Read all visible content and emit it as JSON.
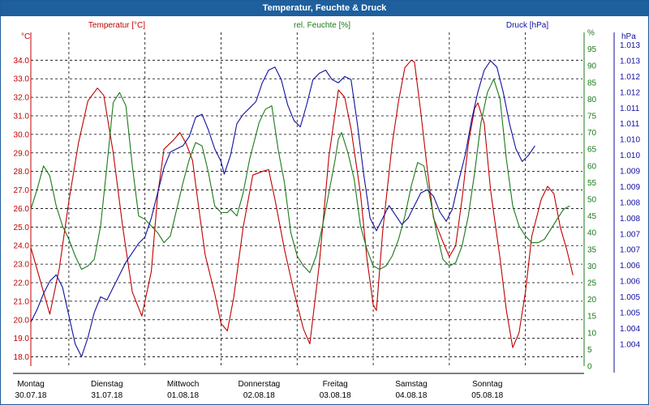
{
  "window": {
    "title": "Temperatur, Feuchte & Druck"
  },
  "chart_data": {
    "type": "line",
    "title": "Temperatur, Feuchte & Druck",
    "colors": {
      "temperature": "#c00000",
      "humidity": "#1a7a1a",
      "pressure": "#1010a0",
      "grid": "#000000"
    },
    "legend": {
      "temperature": "Temperatur [°C]",
      "humidity": "rel. Feuchte [%]",
      "pressure": "Druck [hPa]"
    },
    "axes": {
      "left": {
        "unit": "°C",
        "min": 17.5,
        "max": 35.5,
        "ticks": [
          "18.0",
          "19.0",
          "20.0",
          "21.0",
          "22.0",
          "23.0",
          "24.0",
          "25.0",
          "26.0",
          "27.0",
          "28.0",
          "29.0",
          "30.0",
          "31.0",
          "32.0",
          "33.0",
          "34.0"
        ]
      },
      "humidity": {
        "unit": "%",
        "min": 0,
        "max": 100,
        "ticks": [
          "0",
          "5",
          "10",
          "15",
          "20",
          "25",
          "30",
          "35",
          "40",
          "45",
          "50",
          "55",
          "60",
          "65",
          "70",
          "75",
          "80",
          "85",
          "90",
          "95",
          "%"
        ]
      },
      "right": {
        "unit": "hPa",
        "min": 1.0033,
        "max": 1.0139,
        "ticks": [
          "1.004",
          "1.004",
          "1.005",
          "1.005",
          "1.006",
          "1.006",
          "1.007",
          "1.007",
          "1.008",
          "1.008",
          "1.009",
          "1.009",
          "1.010",
          "1.010",
          "1.011",
          "1.011",
          "1.012",
          "1.012",
          "1.013",
          "1.013"
        ]
      }
    },
    "x": {
      "days": [
        "Montag",
        "Dienstag",
        "Mittwoch",
        "Donnerstag",
        "Freitag",
        "Samstag",
        "Sonntag"
      ],
      "dates": [
        "30.07.18",
        "31.07.18",
        "01.08.18",
        "02.08.18",
        "03.08.18",
        "04.08.18",
        "05.08.18"
      ],
      "range_hours": [
        0,
        174
      ]
    },
    "series": [
      {
        "name": "Temperatur [°C]",
        "axis": "left",
        "points": [
          [
            0,
            23.9
          ],
          [
            3,
            22.1
          ],
          [
            6,
            20.3
          ],
          [
            9,
            22.8
          ],
          [
            12,
            26.4
          ],
          [
            15,
            29.5
          ],
          [
            18,
            31.8
          ],
          [
            21,
            32.5
          ],
          [
            23,
            32.1
          ],
          [
            26,
            29.0
          ],
          [
            29,
            25.0
          ],
          [
            32,
            21.5
          ],
          [
            35,
            20.2
          ],
          [
            38,
            22.6
          ],
          [
            40,
            26.7
          ],
          [
            42,
            29.2
          ],
          [
            45,
            29.7
          ],
          [
            47,
            30.1
          ],
          [
            49,
            29.5
          ],
          [
            51,
            28.6
          ],
          [
            53,
            26.0
          ],
          [
            55,
            23.5
          ],
          [
            58,
            21.4
          ],
          [
            60,
            19.8
          ],
          [
            62,
            19.4
          ],
          [
            64,
            21.2
          ],
          [
            67,
            25.0
          ],
          [
            70,
            27.8
          ],
          [
            73,
            28.0
          ],
          [
            75,
            28.1
          ],
          [
            77,
            26.5
          ],
          [
            80,
            23.8
          ],
          [
            83,
            21.5
          ],
          [
            86,
            19.5
          ],
          [
            88,
            18.7
          ],
          [
            91,
            23.0
          ],
          [
            94,
            28.8
          ],
          [
            97,
            32.4
          ],
          [
            99,
            32.0
          ],
          [
            101,
            30.3
          ],
          [
            104,
            26.8
          ],
          [
            106,
            23.3
          ],
          [
            108,
            20.8
          ],
          [
            109,
            20.5
          ],
          [
            111,
            24.8
          ],
          [
            114,
            29.5
          ],
          [
            116,
            31.8
          ],
          [
            118,
            33.6
          ],
          [
            120,
            34.0
          ],
          [
            121,
            33.9
          ],
          [
            123,
            31.2
          ],
          [
            125,
            28.2
          ],
          [
            127,
            25.5
          ],
          [
            130,
            24.2
          ],
          [
            132,
            23.4
          ],
          [
            134,
            24.0
          ],
          [
            136,
            26.5
          ],
          [
            138,
            29.5
          ],
          [
            140,
            31.4
          ],
          [
            141,
            31.7
          ],
          [
            143,
            30.6
          ],
          [
            145,
            27.0
          ],
          [
            148,
            23.3
          ],
          [
            150,
            20.5
          ],
          [
            152,
            18.5
          ],
          [
            154,
            19.3
          ],
          [
            156,
            21.5
          ],
          [
            158,
            24.5
          ],
          [
            161,
            26.5
          ],
          [
            163,
            27.2
          ],
          [
            165,
            26.8
          ],
          [
            167,
            25.0
          ],
          [
            169,
            23.8
          ],
          [
            171,
            22.4
          ]
        ]
      },
      {
        "name": "rel. Feuchte [%]",
        "axis": "humidity",
        "points": [
          [
            0,
            47
          ],
          [
            2,
            53
          ],
          [
            4,
            60
          ],
          [
            6,
            57
          ],
          [
            8,
            48
          ],
          [
            10,
            42
          ],
          [
            12,
            38
          ],
          [
            14,
            33
          ],
          [
            16,
            29
          ],
          [
            18,
            30
          ],
          [
            20,
            32
          ],
          [
            22,
            42
          ],
          [
            24,
            60
          ],
          [
            26,
            79
          ],
          [
            28,
            82
          ],
          [
            30,
            78
          ],
          [
            32,
            60
          ],
          [
            34,
            45
          ],
          [
            36,
            44
          ],
          [
            38,
            42
          ],
          [
            40,
            40
          ],
          [
            42,
            37
          ],
          [
            44,
            39
          ],
          [
            46,
            47
          ],
          [
            48,
            55
          ],
          [
            50,
            62
          ],
          [
            52,
            67
          ],
          [
            54,
            66
          ],
          [
            56,
            58
          ],
          [
            58,
            48
          ],
          [
            60,
            46
          ],
          [
            62,
            46
          ],
          [
            63,
            47
          ],
          [
            65,
            45
          ],
          [
            67,
            52
          ],
          [
            69,
            62
          ],
          [
            72,
            73
          ],
          [
            74,
            77
          ],
          [
            76,
            78
          ],
          [
            78,
            65
          ],
          [
            80,
            55
          ],
          [
            82,
            40
          ],
          [
            84,
            33
          ],
          [
            86,
            30
          ],
          [
            88,
            28
          ],
          [
            90,
            33
          ],
          [
            92,
            42
          ],
          [
            94,
            52
          ],
          [
            96,
            62
          ],
          [
            97,
            68
          ],
          [
            98,
            70
          ],
          [
            100,
            64
          ],
          [
            102,
            56
          ],
          [
            104,
            42
          ],
          [
            106,
            35
          ],
          [
            108,
            30
          ],
          [
            110,
            29
          ],
          [
            112,
            30
          ],
          [
            114,
            33
          ],
          [
            116,
            38
          ],
          [
            118,
            45
          ],
          [
            120,
            54
          ],
          [
            122,
            61
          ],
          [
            124,
            60
          ],
          [
            126,
            50
          ],
          [
            128,
            40
          ],
          [
            130,
            32
          ],
          [
            132,
            30
          ],
          [
            134,
            31
          ],
          [
            136,
            36
          ],
          [
            138,
            45
          ],
          [
            140,
            58
          ],
          [
            142,
            73
          ],
          [
            144,
            82
          ],
          [
            146,
            86
          ],
          [
            148,
            80
          ],
          [
            150,
            62
          ],
          [
            152,
            48
          ],
          [
            154,
            42
          ],
          [
            156,
            39
          ],
          [
            158,
            37
          ],
          [
            160,
            37
          ],
          [
            162,
            38
          ],
          [
            164,
            41
          ],
          [
            166,
            44
          ],
          [
            168,
            47
          ],
          [
            170,
            48
          ]
        ]
      },
      {
        "name": "Druck [hPa]",
        "axis": "right",
        "points": [
          [
            0,
            1.0047
          ],
          [
            2,
            1.0051
          ],
          [
            4,
            1.0056
          ],
          [
            6,
            1.006
          ],
          [
            8,
            1.0062
          ],
          [
            10,
            1.0058
          ],
          [
            12,
            1.0049
          ],
          [
            14,
            1.004
          ],
          [
            16,
            1.0036
          ],
          [
            18,
            1.0042
          ],
          [
            20,
            1.005
          ],
          [
            22,
            1.0055
          ],
          [
            24,
            1.0054
          ],
          [
            26,
            1.0058
          ],
          [
            28,
            1.0062
          ],
          [
            30,
            1.0066
          ],
          [
            32,
            1.0069
          ],
          [
            34,
            1.0072
          ],
          [
            36,
            1.0074
          ],
          [
            38,
            1.008
          ],
          [
            40,
            1.0088
          ],
          [
            42,
            1.0096
          ],
          [
            44,
            1.0101
          ],
          [
            46,
            1.0102
          ],
          [
            48,
            1.0103
          ],
          [
            50,
            1.0106
          ],
          [
            52,
            1.0112
          ],
          [
            54,
            1.0113
          ],
          [
            56,
            1.0108
          ],
          [
            58,
            1.0102
          ],
          [
            60,
            1.0098
          ],
          [
            61,
            1.0094
          ],
          [
            63,
            1.01
          ],
          [
            65,
            1.011
          ],
          [
            67,
            1.0113
          ],
          [
            69,
            1.0115
          ],
          [
            71,
            1.0117
          ],
          [
            73,
            1.0123
          ],
          [
            75,
            1.0127
          ],
          [
            77,
            1.0128
          ],
          [
            79,
            1.0124
          ],
          [
            81,
            1.0116
          ],
          [
            83,
            1.0111
          ],
          [
            85,
            1.0109
          ],
          [
            87,
            1.0116
          ],
          [
            89,
            1.0124
          ],
          [
            91,
            1.0126
          ],
          [
            93,
            1.0127
          ],
          [
            95,
            1.0124
          ],
          [
            97,
            1.0123
          ],
          [
            99,
            1.0125
          ],
          [
            101,
            1.0124
          ],
          [
            103,
            1.011
          ],
          [
            105,
            1.0094
          ],
          [
            107,
            1.008
          ],
          [
            109,
            1.0076
          ],
          [
            111,
            1.008
          ],
          [
            113,
            1.0084
          ],
          [
            115,
            1.0081
          ],
          [
            117,
            1.0078
          ],
          [
            119,
            1.008
          ],
          [
            121,
            1.0084
          ],
          [
            123,
            1.0088
          ],
          [
            125,
            1.0089
          ],
          [
            127,
            1.0087
          ],
          [
            129,
            1.0082
          ],
          [
            131,
            1.0079
          ],
          [
            133,
            1.0083
          ],
          [
            135,
            1.0092
          ],
          [
            137,
            1.01
          ],
          [
            139,
            1.0111
          ],
          [
            141,
            1.012
          ],
          [
            143,
            1.0127
          ],
          [
            145,
            1.013
          ],
          [
            147,
            1.0128
          ],
          [
            149,
            1.012
          ],
          [
            151,
            1.011
          ],
          [
            153,
            1.0102
          ],
          [
            155,
            1.0098
          ],
          [
            157,
            1.01
          ],
          [
            159,
            1.0103
          ]
        ]
      }
    ]
  }
}
